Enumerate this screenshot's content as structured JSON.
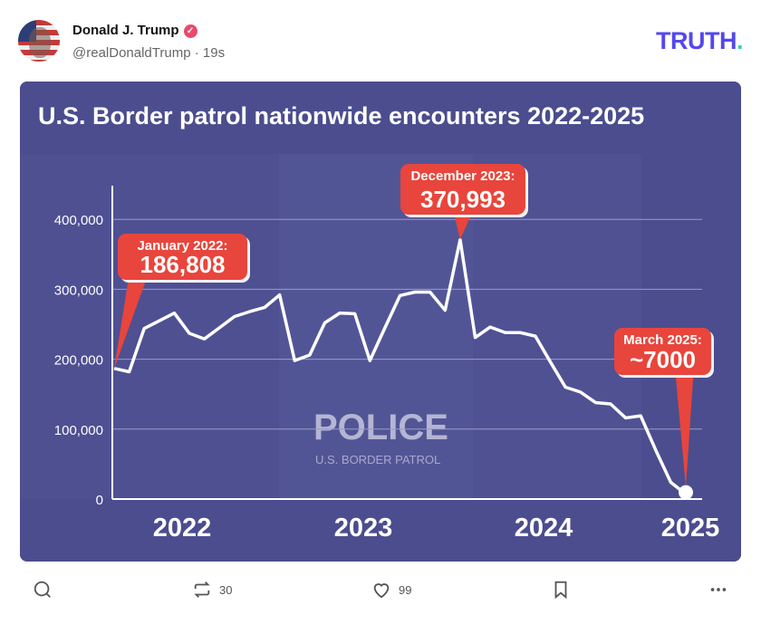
{
  "post": {
    "author_name": "Donald J. Trump",
    "handle_time": "@realDonaldTrump · 19s",
    "verified_icon": "verified-badge-icon",
    "brand_logo": "TRUTH",
    "brand_dot": ".",
    "brand_color": "#5448ee"
  },
  "actions": {
    "reply_icon": "comment-icon",
    "retruth_count": "30",
    "like_count": "99",
    "bookmark_icon": "bookmark-icon",
    "more_icon": "more-icon"
  },
  "chart_data": {
    "type": "line",
    "title": "U.S. Border patrol nationwide encounters 2022-2025",
    "x": [
      "2022-01",
      "2022-02",
      "2022-03",
      "2022-04",
      "2022-05",
      "2022-06",
      "2022-07",
      "2022-08",
      "2022-09",
      "2022-10",
      "2022-11",
      "2022-12",
      "2023-01",
      "2023-02",
      "2023-03",
      "2023-04",
      "2023-05",
      "2023-06",
      "2023-07",
      "2023-08",
      "2023-09",
      "2023-10",
      "2023-11",
      "2023-12",
      "2024-01",
      "2024-02",
      "2024-03",
      "2024-04",
      "2024-05",
      "2024-06",
      "2024-07",
      "2024-08",
      "2024-09",
      "2024-10",
      "2024-11",
      "2024-12",
      "2025-01",
      "2025-02",
      "2025-03"
    ],
    "values": [
      186808,
      182000,
      244000,
      255000,
      266000,
      237000,
      229000,
      245000,
      261000,
      268000,
      274000,
      292000,
      198000,
      206000,
      252000,
      266000,
      265000,
      198000,
      245000,
      291000,
      296000,
      296000,
      270000,
      370993,
      231000,
      246000,
      238000,
      238000,
      233000,
      196000,
      160000,
      153000,
      138000,
      136000,
      116000,
      119000,
      70000,
      24000,
      7000
    ],
    "x_tick_labels": [
      "2022",
      "2023",
      "2024",
      "2025"
    ],
    "y_tick_labels": [
      "0",
      "100,000",
      "200,000",
      "300,000",
      "400,000"
    ],
    "ylim": [
      0,
      440000
    ],
    "grid": true,
    "line_color": "#ffffff",
    "background_color": "#4b4d8e",
    "annotations": [
      {
        "label": "January 2022:",
        "value": "186,808",
        "x": "2022-01",
        "color": "#e8453c"
      },
      {
        "label": "December 2023:",
        "value": "370,993",
        "x": "2023-12",
        "color": "#e8453c"
      },
      {
        "label": "March 2025:",
        "value": "~7000",
        "x": "2025-03",
        "color": "#e8453c"
      }
    ]
  }
}
